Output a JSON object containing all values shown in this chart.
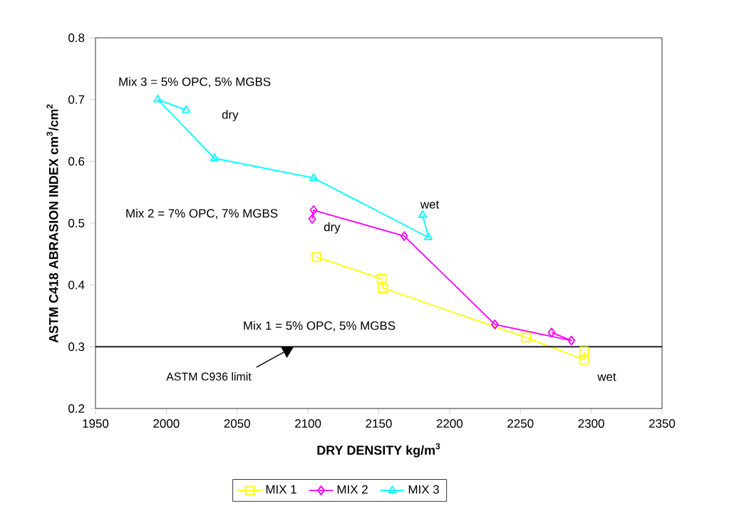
{
  "chart_data": {
    "type": "line",
    "xlabel": "DRY DENSITY   kg/m$^{3}$",
    "ylabel": "ASTM C418 ABRASION INDEX   cm$^{3}$/cm$^{2}$",
    "xlim": [
      1950,
      2350
    ],
    "xticks": [
      1950,
      2000,
      2050,
      2100,
      2150,
      2200,
      2250,
      2300,
      2350
    ],
    "ylim": [
      0.2,
      0.8
    ],
    "yticks": [
      0.2,
      0.3,
      0.4,
      0.5,
      0.6,
      0.7,
      0.8
    ],
    "legend": "bottom",
    "grid": false,
    "series": [
      {
        "name": "MIX 1",
        "color": "#ffff00",
        "marker": "square",
        "x": [
          2106,
          2152,
          2153,
          2254,
          2295,
          2295
        ],
        "values": [
          0.445,
          0.41,
          0.395,
          0.315,
          0.279,
          0.292
        ]
      },
      {
        "name": "MIX 2",
        "color": "#ff00ff",
        "marker": "diamond",
        "x": [
          2103,
          2104,
          2168,
          2232,
          2286,
          2272
        ],
        "values": [
          0.507,
          0.521,
          0.479,
          0.336,
          0.31,
          0.323
        ]
      },
      {
        "name": "MIX 3",
        "color": "#00ffff",
        "marker": "triangle",
        "x": [
          2014,
          1994,
          2034,
          2104,
          2185,
          2181
        ],
        "values": [
          0.683,
          0.7,
          0.605,
          0.573,
          0.477,
          0.513
        ]
      }
    ],
    "ref_lines": [
      {
        "axis": "y",
        "value": 0.3,
        "label": "ASTM C936 limit",
        "color": "#000000"
      }
    ],
    "annotations": [
      "Mix 3 = 5% OPC, 5% MGBS",
      "dry",
      "Mix 2 = 7% OPC, 7% MGBS",
      "dry",
      "wet",
      "Mix 1 = 5% OPC, 5% MGBS",
      "wet"
    ]
  }
}
